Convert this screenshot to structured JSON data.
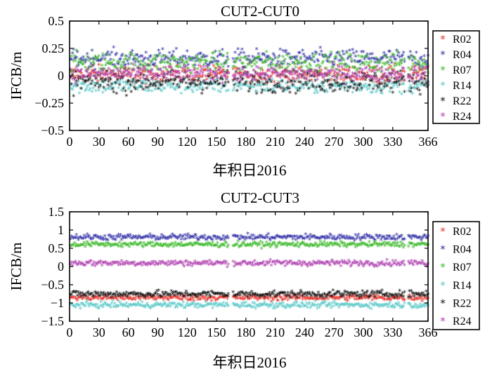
{
  "chart_data": [
    {
      "type": "scatter",
      "title": "CUT2-CUT0",
      "xlabel": "年积日2016",
      "ylabel": "IFCB/m",
      "xlim": [
        0,
        366
      ],
      "ylim": [
        -0.5,
        0.5
      ],
      "x_ticks": [
        "0",
        "30",
        "60",
        "90",
        "120",
        "150",
        "180",
        "210",
        "240",
        "270",
        "300",
        "330",
        "366"
      ],
      "y_ticks": [
        "0.5",
        "0.25",
        "0",
        "−0.25",
        "−0.5"
      ],
      "legend_position": "right",
      "data_gap_days": [
        163,
        166
      ],
      "x": "days 1–366 (one estimate per day)",
      "series": [
        {
          "name": "R02",
          "color": "#e8322a",
          "mean": 0.0,
          "spread": 0.04
        },
        {
          "name": "R04",
          "color": "#3434a8",
          "mean": 0.15,
          "spread": 0.04
        },
        {
          "name": "R07",
          "color": "#3cb92a",
          "mean": 0.11,
          "spread": 0.045
        },
        {
          "name": "R14",
          "color": "#5ac8c8",
          "mean": -0.1,
          "spread": 0.035
        },
        {
          "name": "R22",
          "color": "#111111",
          "mean": -0.06,
          "spread": 0.05
        },
        {
          "name": "R24",
          "color": "#b040b0",
          "mean": 0.01,
          "spread": 0.035
        }
      ]
    },
    {
      "type": "scatter",
      "title": "CUT2-CUT3",
      "xlabel": "年积日2016",
      "ylabel": "IFCB/m",
      "xlim": [
        0,
        366
      ],
      "ylim": [
        -1.5,
        1.5
      ],
      "x_ticks": [
        "0",
        "30",
        "60",
        "90",
        "120",
        "150",
        "180",
        "210",
        "240",
        "270",
        "300",
        "330",
        "366"
      ],
      "y_ticks": [
        "1.5",
        "1",
        "0.5",
        "0",
        "−0.5",
        "−1",
        "−1.5"
      ],
      "legend_position": "right",
      "data_gap_days": [
        163,
        166
      ],
      "x": "days 1–366 (one estimate per day)",
      "series": [
        {
          "name": "R02",
          "color": "#e8322a",
          "mean": -0.88,
          "spread": 0.04
        },
        {
          "name": "R04",
          "color": "#3434a8",
          "mean": 0.78,
          "spread": 0.04
        },
        {
          "name": "R07",
          "color": "#3cb92a",
          "mean": 0.58,
          "spread": 0.035
        },
        {
          "name": "R14",
          "color": "#5ac8c8",
          "mean": -1.08,
          "spread": 0.04
        },
        {
          "name": "R22",
          "color": "#111111",
          "mean": -0.78,
          "spread": 0.045
        },
        {
          "name": "R24",
          "color": "#b040b0",
          "mean": 0.07,
          "spread": 0.04
        }
      ]
    }
  ]
}
